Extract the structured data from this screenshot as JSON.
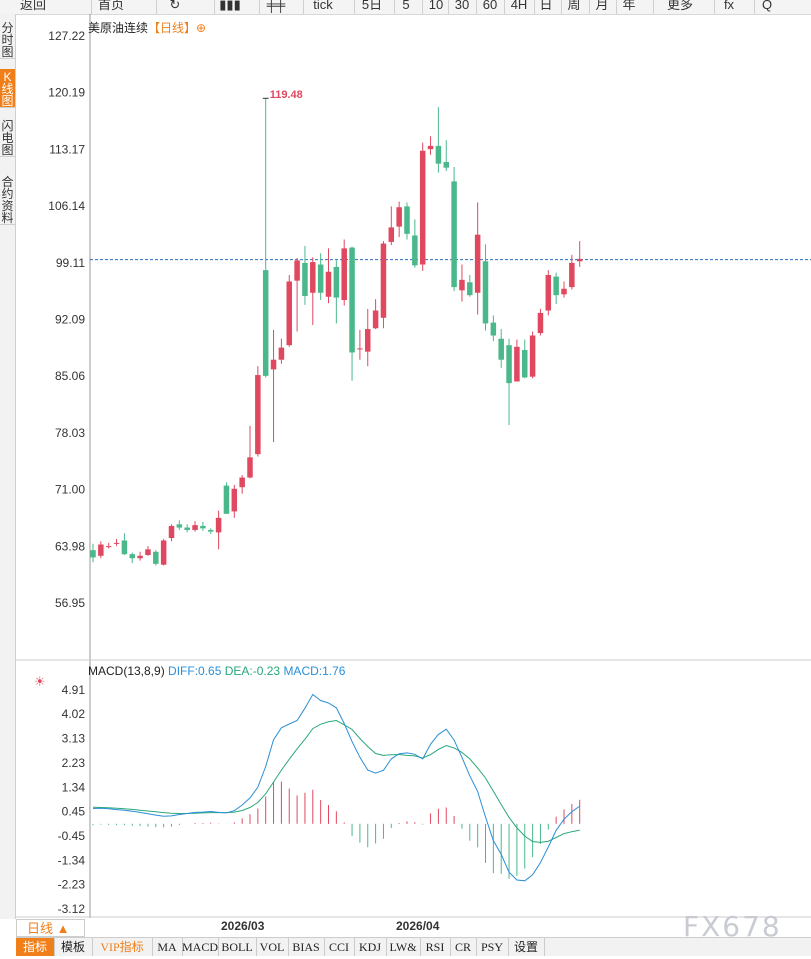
{
  "toolbar": {
    "items": [
      "返回",
      "首页",
      "",
      "",
      "",
      "tick",
      "5日",
      "5",
      "10",
      "30",
      "60",
      "4H",
      "日",
      "周",
      "月",
      "年",
      "更多",
      "fx",
      "Q"
    ]
  },
  "left_tabs": [
    "分时图",
    "K线图",
    "闪电图",
    "合约资料"
  ],
  "title": {
    "name": "美原油连续",
    "period": "【日线】",
    "icon": "⊕"
  },
  "price_axis_labels": [
    "127.22",
    "120.19",
    "113.17",
    "106.14",
    "99.11",
    "92.09",
    "85.06",
    "78.03",
    "71.00",
    "63.98",
    "56.95"
  ],
  "peak_label": "119.48",
  "last_price_line": 99.5,
  "macd": {
    "label": "MACD(13,8,9)",
    "diff_label": "DIFF:0.65",
    "dea_label": "DEA:-0.23",
    "macd_label": "MACD:1.76",
    "axis_labels": [
      "4.91",
      "4.02",
      "3.13",
      "2.23",
      "1.34",
      "0.45",
      "-0.45",
      "-1.34",
      "-2.23",
      "-3.12"
    ]
  },
  "x_labels": [
    "2026/03",
    "2026/04"
  ],
  "period_button": "日线 ▲",
  "indicator_tabs": [
    "指标",
    "模板",
    "VIP指标",
    "MA",
    "MACD",
    "BOLL",
    "VOL",
    "BIAS",
    "CCI",
    "KDJ",
    "LW&",
    "RSI",
    "CR",
    "PSY",
    "设置"
  ],
  "watermark": "FX678",
  "chart_data": {
    "type": "candlestick",
    "ylim": [
      56.95,
      127.22
    ],
    "candles": [
      [
        63.5,
        62.6,
        64.3,
        62.0
      ],
      [
        62.8,
        64.2,
        64.6,
        62.5
      ],
      [
        63.9,
        64.0,
        64.4,
        63.7
      ],
      [
        64.3,
        64.4,
        64.9,
        64.0
      ],
      [
        64.7,
        63.0,
        65.6,
        62.9
      ],
      [
        63.0,
        62.5,
        63.2,
        61.9
      ],
      [
        62.5,
        62.8,
        63.3,
        62.2
      ],
      [
        62.9,
        63.6,
        64.0,
        62.8
      ],
      [
        63.3,
        61.8,
        63.5,
        61.6
      ],
      [
        61.7,
        64.7,
        64.9,
        61.6
      ],
      [
        65.0,
        66.5,
        66.7,
        64.6
      ],
      [
        66.7,
        66.3,
        67.2,
        66.0
      ],
      [
        66.3,
        66.0,
        66.7,
        65.7
      ],
      [
        66.0,
        66.6,
        67.1,
        65.8
      ],
      [
        66.5,
        66.2,
        67.0,
        65.9
      ],
      [
        66.0,
        65.8,
        66.2,
        65.5
      ],
      [
        65.7,
        67.5,
        68.4,
        63.6
      ],
      [
        71.5,
        68.0,
        71.9,
        69.2
      ],
      [
        68.3,
        71.1,
        71.6,
        67.5
      ],
      [
        71.3,
        72.5,
        72.8,
        70.5
      ],
      [
        72.5,
        75.0,
        78.9,
        72.4
      ],
      [
        75.4,
        85.2,
        86.3,
        75.1
      ],
      [
        98.2,
        85.1,
        119.5,
        84.9
      ],
      [
        85.9,
        87.1,
        90.8,
        76.9
      ],
      [
        87.1,
        88.6,
        89.7,
        86.6
      ],
      [
        88.9,
        96.8,
        97.6,
        88.7
      ],
      [
        96.9,
        99.4,
        99.7,
        90.6
      ],
      [
        99.1,
        95.0,
        101.2,
        93.9
      ],
      [
        95.4,
        99.2,
        99.8,
        91.4
      ],
      [
        98.9,
        95.4,
        100.3,
        94.5
      ],
      [
        94.9,
        98.0,
        100.9,
        94.1
      ],
      [
        98.6,
        94.8,
        99.4,
        91.6
      ],
      [
        94.5,
        100.9,
        102.0,
        93.8
      ],
      [
        101.0,
        88.0,
        101.1,
        84.5
      ],
      [
        88.5,
        88.5,
        90.8,
        87.1
      ],
      [
        88.1,
        90.9,
        93.4,
        86.3
      ],
      [
        91.0,
        93.2,
        94.6,
        90.9
      ],
      [
        92.3,
        101.5,
        101.8,
        91.0
      ],
      [
        101.7,
        103.5,
        106.1,
        101.3
      ],
      [
        103.6,
        106.0,
        106.7,
        102.3
      ],
      [
        106.1,
        102.7,
        106.6,
        102.0
      ],
      [
        102.5,
        98.8,
        104.5,
        98.5
      ],
      [
        98.9,
        113.0,
        114.0,
        98.1
      ],
      [
        113.2,
        113.6,
        114.8,
        112.5
      ],
      [
        113.6,
        111.4,
        118.4,
        110.3
      ],
      [
        111.6,
        110.9,
        114.3,
        110.5
      ],
      [
        109.2,
        96.1,
        111.0,
        95.6
      ],
      [
        95.7,
        97.0,
        98.9,
        94.3
      ],
      [
        96.7,
        95.1,
        97.6,
        94.9
      ],
      [
        95.4,
        102.6,
        106.6,
        92.7
      ],
      [
        99.3,
        91.6,
        101.4,
        90.7
      ],
      [
        91.7,
        90.1,
        92.6,
        89.4
      ],
      [
        89.7,
        87.1,
        90.9,
        86.1
      ],
      [
        88.9,
        84.2,
        89.7,
        79.0
      ],
      [
        84.4,
        88.7,
        89.6,
        86.9
      ],
      [
        88.3,
        84.9,
        89.6,
        84.8
      ],
      [
        85.0,
        90.1,
        90.6,
        84.8
      ],
      [
        90.4,
        92.9,
        93.4,
        90.1
      ],
      [
        93.2,
        97.6,
        98.2,
        92.6
      ],
      [
        97.4,
        95.1,
        97.9,
        94.0
      ],
      [
        95.2,
        95.9,
        96.8,
        94.8
      ],
      [
        96.1,
        99.1,
        100.1,
        95.8
      ],
      [
        99.3,
        99.6,
        101.8,
        98.6
      ]
    ],
    "macd_ylim": [
      -3.6,
      5.2
    ],
    "diff": [
      0.56,
      0.57,
      0.55,
      0.52,
      0.5,
      0.46,
      0.42,
      0.37,
      0.32,
      0.28,
      0.29,
      0.34,
      0.38,
      0.42,
      0.43,
      0.45,
      0.42,
      0.4,
      0.48,
      0.69,
      0.95,
      1.34,
      2.1,
      3.08,
      3.52,
      3.66,
      3.79,
      4.24,
      4.74,
      4.52,
      4.43,
      4.25,
      3.68,
      3.01,
      2.44,
      1.97,
      1.86,
      1.96,
      2.38,
      2.57,
      2.6,
      2.55,
      2.38,
      2.92,
      3.28,
      3.47,
      3.07,
      2.44,
      1.76,
      1.19,
      0.25,
      -0.61,
      -1.12,
      -1.77,
      -2.06,
      -2.09,
      -1.87,
      -1.42,
      -0.85,
      -0.24,
      0.17,
      0.44,
      0.65
    ],
    "dea": [
      0.61,
      0.6,
      0.59,
      0.57,
      0.55,
      0.53,
      0.5,
      0.47,
      0.44,
      0.41,
      0.39,
      0.38,
      0.38,
      0.39,
      0.4,
      0.41,
      0.41,
      0.41,
      0.43,
      0.49,
      0.6,
      0.78,
      1.1,
      1.53,
      1.97,
      2.37,
      2.75,
      3.1,
      3.49,
      3.65,
      3.74,
      3.79,
      3.63,
      3.46,
      3.13,
      2.83,
      2.58,
      2.51,
      2.53,
      2.54,
      2.51,
      2.49,
      2.41,
      2.54,
      2.73,
      2.87,
      2.78,
      2.62,
      2.38,
      2.05,
      1.68,
      1.2,
      0.71,
      0.24,
      -0.15,
      -0.45,
      -0.65,
      -0.68,
      -0.64,
      -0.5,
      -0.36,
      -0.29,
      -0.23
    ],
    "hist": [
      -0.05,
      -0.03,
      -0.04,
      -0.05,
      -0.05,
      -0.07,
      -0.08,
      -0.1,
      -0.12,
      -0.13,
      -0.1,
      -0.04,
      0.0,
      0.03,
      0.03,
      0.04,
      0.01,
      -0.01,
      0.05,
      0.2,
      0.35,
      0.56,
      1.0,
      1.55,
      1.55,
      1.29,
      1.04,
      1.14,
      1.25,
      0.87,
      0.69,
      0.46,
      0.05,
      -0.45,
      -0.69,
      -0.86,
      -0.72,
      -0.55,
      -0.15,
      0.03,
      0.09,
      0.06,
      -0.03,
      0.38,
      0.55,
      0.6,
      0.29,
      -0.18,
      -0.62,
      -0.86,
      -1.43,
      -1.81,
      -1.83,
      -2.01,
      -1.91,
      -1.64,
      -1.22,
      -0.74,
      -0.21,
      0.26,
      0.53,
      0.73,
      0.88
    ]
  },
  "colors": {
    "up": "#e04860",
    "down": "#4ab88a",
    "accent": "#f07f1a",
    "diff_line": "#2b8fd6",
    "dea_line": "#2aa87a"
  }
}
